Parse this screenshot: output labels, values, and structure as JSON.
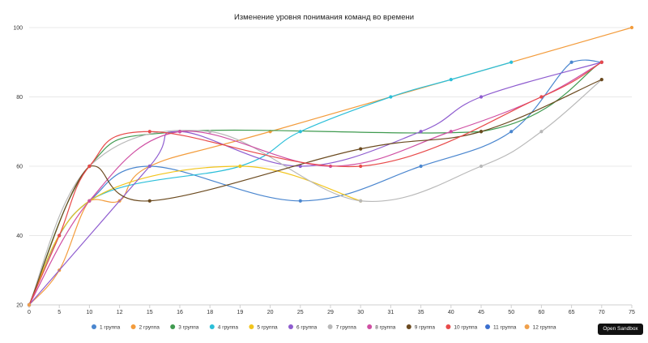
{
  "sandbox_button": {
    "label": "Open Sandbox"
  },
  "chart_data": {
    "type": "line",
    "title": "Изменение уровня понимания команд во времени",
    "xlabel": "",
    "ylabel": "",
    "categories": [
      "0",
      "5",
      "10",
      "12",
      "15",
      "16",
      "18",
      "19",
      "20",
      "25",
      "29",
      "30",
      "31",
      "35",
      "40",
      "45",
      "50",
      "60",
      "65",
      "70",
      "75"
    ],
    "yticks": [
      20,
      40,
      60,
      80,
      100
    ],
    "ylim": [
      20,
      100
    ],
    "grid": true,
    "legend_position": "bottom",
    "series": [
      {
        "name": "1 группа",
        "color": "#4a86cf",
        "values": [
          20,
          40,
          50,
          null,
          60,
          null,
          null,
          null,
          null,
          50,
          null,
          null,
          null,
          60,
          null,
          null,
          70,
          null,
          90,
          90,
          null
        ]
      },
      {
        "name": "2 группа",
        "color": "#f39c3c",
        "values": [
          20,
          30,
          50,
          50,
          60,
          null,
          null,
          null,
          70,
          null,
          null,
          null,
          null,
          null,
          null,
          null,
          null,
          null,
          null,
          null,
          100
        ]
      },
      {
        "name": "3 группа",
        "color": "#3f9a4f",
        "values": [
          20,
          null,
          60,
          null,
          null,
          70,
          null,
          null,
          null,
          null,
          null,
          null,
          null,
          null,
          null,
          70,
          null,
          null,
          null,
          90,
          null
        ]
      },
      {
        "name": "4 группа",
        "color": "#2bbfd9",
        "values": [
          20,
          null,
          50,
          null,
          null,
          null,
          null,
          60,
          null,
          70,
          null,
          null,
          80,
          null,
          85,
          null,
          90,
          null,
          null,
          null,
          null
        ]
      },
      {
        "name": "5 группа",
        "color": "#f2c51c",
        "values": [
          20,
          null,
          50,
          null,
          null,
          null,
          null,
          60,
          null,
          null,
          null,
          50,
          null,
          null,
          null,
          null,
          null,
          null,
          null,
          null,
          null
        ]
      },
      {
        "name": "6 группа",
        "color": "#8e5ccf",
        "values": [
          20,
          null,
          null,
          null,
          60,
          70,
          null,
          null,
          null,
          60,
          null,
          null,
          null,
          70,
          null,
          80,
          null,
          null,
          null,
          90,
          null
        ]
      },
      {
        "name": "7 группа",
        "color": "#b8b8b8",
        "values": [
          20,
          null,
          60,
          null,
          null,
          null,
          70,
          null,
          null,
          null,
          null,
          50,
          null,
          null,
          null,
          60,
          null,
          70,
          null,
          85,
          null
        ]
      },
      {
        "name": "8 группа",
        "color": "#cf4fa3",
        "values": [
          20,
          null,
          50,
          null,
          null,
          70,
          null,
          null,
          null,
          null,
          60,
          null,
          null,
          null,
          70,
          null,
          null,
          80,
          null,
          90,
          null
        ]
      },
      {
        "name": "9 группа",
        "color": "#6b4a1f",
        "values": [
          20,
          null,
          60,
          null,
          50,
          null,
          null,
          null,
          null,
          null,
          null,
          65,
          null,
          null,
          null,
          70,
          null,
          null,
          null,
          85,
          null
        ]
      },
      {
        "name": "10 группа",
        "color": "#e84a4a",
        "values": [
          20,
          40,
          60,
          null,
          70,
          null,
          null,
          null,
          null,
          null,
          null,
          60,
          null,
          null,
          null,
          null,
          null,
          80,
          null,
          90,
          null
        ]
      },
      {
        "name": "11 группа",
        "color": "#3b6fcf",
        "values": [
          20,
          null,
          null,
          null,
          null,
          null,
          null,
          null,
          null,
          null,
          null,
          null,
          null,
          null,
          null,
          null,
          null,
          null,
          null,
          null,
          null
        ]
      },
      {
        "name": "12 группа",
        "color": "#f0a04b",
        "values": [
          20,
          null,
          null,
          null,
          null,
          null,
          null,
          null,
          null,
          null,
          null,
          null,
          null,
          null,
          null,
          null,
          null,
          null,
          null,
          null,
          null
        ]
      }
    ]
  }
}
